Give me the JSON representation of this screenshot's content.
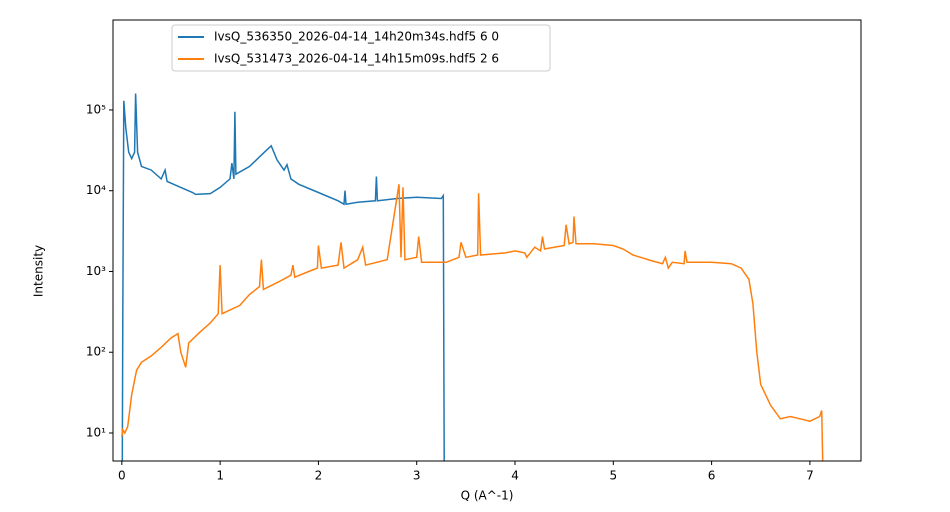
{
  "chart_data": {
    "type": "line",
    "xlabel": "Q (A^-1)",
    "ylabel": "Intensity",
    "log_y": true,
    "legend": "upper left",
    "xlim": [
      -0.09,
      7.52
    ],
    "xticks": [
      0,
      1,
      2,
      3,
      4,
      5,
      6,
      7
    ],
    "ylim": [
      4.5,
      1300000
    ],
    "yticks": [
      {
        "value": 10,
        "label": "10¹"
      },
      {
        "value": 100,
        "label": "10²"
      },
      {
        "value": 1000,
        "label": "10³"
      },
      {
        "value": 10000,
        "label": "10⁴"
      },
      {
        "value": 100000,
        "label": "10⁵"
      }
    ],
    "series": [
      {
        "name": "IvsQ_536350_2026-04-14_14h20m34s.hdf5 6 0",
        "color": "#1f77b4",
        "x": [
          0.005,
          0.01,
          0.02,
          0.04,
          0.07,
          0.1,
          0.13,
          0.14,
          0.16,
          0.2,
          0.3,
          0.4,
          0.44,
          0.46,
          0.6,
          0.72,
          0.75,
          0.9,
          1.0,
          1.1,
          1.12,
          1.14,
          1.15,
          1.16,
          1.3,
          1.45,
          1.52,
          1.58,
          1.65,
          1.68,
          1.72,
          1.8,
          2.0,
          2.2,
          2.26,
          2.27,
          2.28,
          2.4,
          2.58,
          2.59,
          2.6,
          2.8,
          3.0,
          3.1,
          3.25,
          3.27,
          3.28
        ],
        "values": [
          4.5,
          280,
          130000,
          60000,
          30000,
          25000,
          30000,
          160000,
          30000,
          20000,
          18000,
          14000,
          18000,
          13000,
          11000,
          9500,
          9000,
          9200,
          11000,
          14000,
          22000,
          14000,
          95000,
          16000,
          20000,
          30000,
          36000,
          24000,
          18000,
          21000,
          14000,
          12000,
          9500,
          7500,
          6800,
          10000,
          6800,
          7200,
          7500,
          15000,
          7500,
          8000,
          8300,
          8200,
          8000,
          8700,
          4.5
        ]
      },
      {
        "name": "IvsQ_531473_2026-04-14_14h15m09s.hdf5 2 6",
        "color": "#ff7f0e",
        "x": [
          0.0,
          0.01,
          0.03,
          0.06,
          0.1,
          0.15,
          0.2,
          0.3,
          0.4,
          0.5,
          0.57,
          0.6,
          0.65,
          0.68,
          0.8,
          0.9,
          0.98,
          1.0,
          1.02,
          1.2,
          1.3,
          1.4,
          1.42,
          1.44,
          1.6,
          1.72,
          1.74,
          1.76,
          1.9,
          1.99,
          2.0,
          2.03,
          2.2,
          2.23,
          2.26,
          2.4,
          2.45,
          2.48,
          2.7,
          2.82,
          2.84,
          2.86,
          2.88,
          3.0,
          3.02,
          3.05,
          3.3,
          3.43,
          3.45,
          3.5,
          3.62,
          3.63,
          3.65,
          3.9,
          4.0,
          4.1,
          4.12,
          4.2,
          4.26,
          4.28,
          4.3,
          4.4,
          4.5,
          4.52,
          4.55,
          4.59,
          4.6,
          4.62,
          4.8,
          5.0,
          5.1,
          5.2,
          5.4,
          5.5,
          5.53,
          5.56,
          5.6,
          5.72,
          5.73,
          5.75,
          6.0,
          6.2,
          6.3,
          6.38,
          6.42,
          6.46,
          6.5,
          6.6,
          6.7,
          6.8,
          6.9,
          7.0,
          7.1,
          7.12,
          7.13
        ],
        "values": [
          9,
          11,
          10,
          12,
          30,
          60,
          75,
          90,
          115,
          150,
          170,
          100,
          65,
          130,
          180,
          230,
          300,
          1200,
          300,
          380,
          520,
          650,
          1400,
          600,
          750,
          900,
          1200,
          850,
          1000,
          1100,
          2100,
          1100,
          1200,
          2300,
          1100,
          1400,
          2000,
          1200,
          1400,
          12000,
          1500,
          11000,
          1400,
          1500,
          2700,
          1300,
          1300,
          1500,
          2300,
          1500,
          1600,
          9300,
          1600,
          1700,
          1800,
          1700,
          1500,
          2000,
          1800,
          2700,
          1900,
          2000,
          2100,
          3800,
          2200,
          2300,
          4800,
          2200,
          2200,
          2100,
          1900,
          1600,
          1350,
          1250,
          1500,
          1100,
          1300,
          1250,
          1800,
          1300,
          1300,
          1250,
          1100,
          800,
          400,
          100,
          40,
          22,
          15,
          16,
          15,
          14,
          16,
          19,
          4.5
        ]
      }
    ]
  }
}
